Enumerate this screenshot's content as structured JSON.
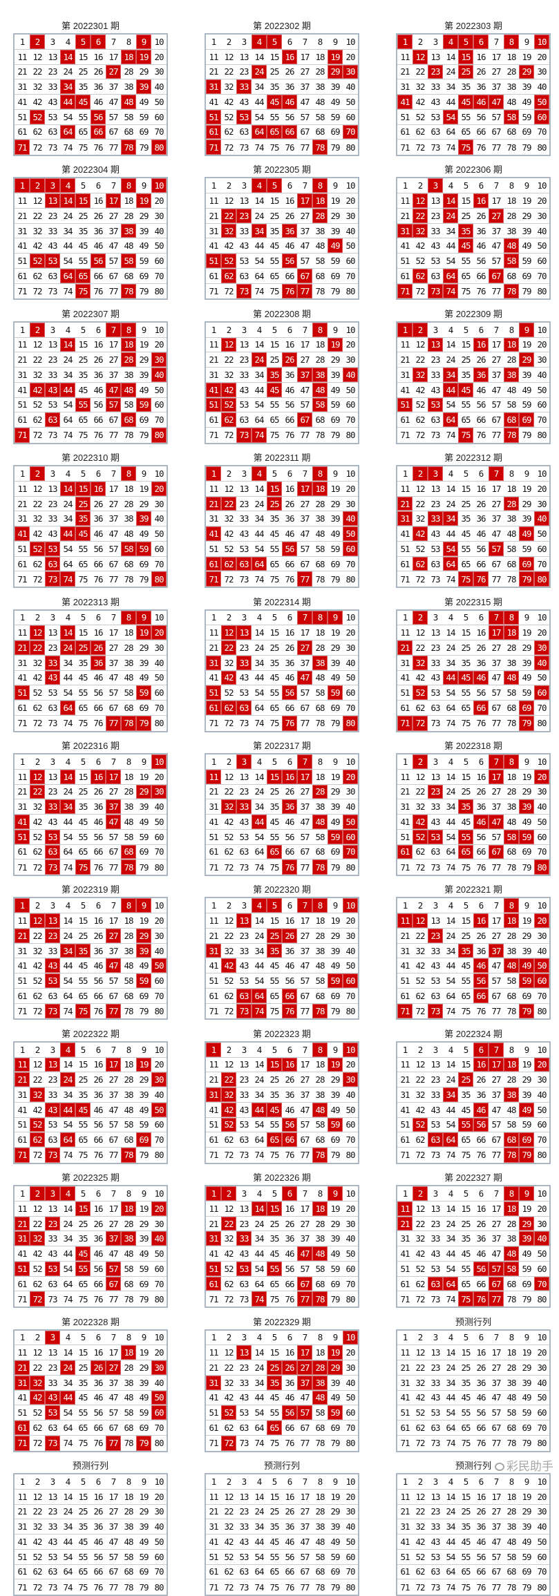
{
  "colors": {
    "highlight": "#cc0000",
    "grid_border": "#aab6c2"
  },
  "grid_numbers": [
    1,
    2,
    3,
    4,
    5,
    6,
    7,
    8,
    9,
    10,
    11,
    12,
    13,
    14,
    15,
    16,
    17,
    18,
    19,
    20,
    21,
    22,
    23,
    24,
    25,
    26,
    27,
    28,
    29,
    30,
    31,
    32,
    33,
    34,
    35,
    36,
    37,
    38,
    39,
    40,
    41,
    42,
    43,
    44,
    45,
    46,
    47,
    48,
    49,
    50,
    51,
    52,
    53,
    54,
    55,
    56,
    57,
    58,
    59,
    60,
    61,
    62,
    63,
    64,
    65,
    66,
    67,
    68,
    69,
    70,
    71,
    72,
    73,
    74,
    75,
    76,
    77,
    78,
    79,
    80
  ],
  "boards": [
    {
      "title": "第 2022301 期",
      "hits": [
        2,
        5,
        6,
        9,
        14,
        18,
        19,
        27,
        34,
        39,
        44,
        45,
        48,
        52,
        56,
        64,
        66,
        71,
        78,
        80
      ]
    },
    {
      "title": "第 2022302 期",
      "hits": [
        4,
        5,
        16,
        19,
        24,
        29,
        30,
        31,
        33,
        45,
        46,
        51,
        53,
        61,
        64,
        65,
        66,
        70,
        71,
        78
      ]
    },
    {
      "title": "第 2022303 期",
      "hits": [
        1,
        4,
        5,
        6,
        8,
        10,
        12,
        15,
        23,
        25,
        29,
        41,
        45,
        46,
        47,
        50,
        54,
        58,
        60,
        75
      ]
    },
    {
      "title": "第 2022304 期",
      "hits": [
        1,
        2,
        3,
        4,
        8,
        10,
        13,
        14,
        15,
        17,
        19,
        38,
        52,
        53,
        56,
        58,
        64,
        65,
        75,
        78
      ]
    },
    {
      "title": "第 2022305 期",
      "hits": [
        4,
        5,
        8,
        17,
        18,
        22,
        23,
        28,
        32,
        34,
        36,
        49,
        51,
        52,
        56,
        62,
        67,
        73,
        76,
        77
      ]
    },
    {
      "title": "第 2022306 期",
      "hits": [
        3,
        12,
        14,
        16,
        22,
        24,
        27,
        31,
        32,
        35,
        45,
        48,
        58,
        62,
        64,
        67,
        71,
        73,
        74,
        78
      ]
    },
    {
      "title": "第 2022307 期",
      "hits": [
        2,
        7,
        8,
        14,
        18,
        28,
        30,
        40,
        42,
        43,
        44,
        47,
        48,
        55,
        57,
        59,
        63,
        68,
        71,
        80
      ]
    },
    {
      "title": "第 2022308 期",
      "hits": [
        8,
        12,
        19,
        24,
        26,
        35,
        37,
        38,
        40,
        41,
        42,
        45,
        48,
        51,
        52,
        58,
        62,
        67,
        73,
        74
      ]
    },
    {
      "title": "第 2022309 期",
      "hits": [
        1,
        2,
        9,
        13,
        16,
        18,
        29,
        32,
        34,
        36,
        38,
        44,
        45,
        51,
        53,
        64,
        68,
        69,
        75,
        78
      ]
    },
    {
      "title": "第 2022310 期",
      "hits": [
        2,
        8,
        14,
        15,
        16,
        20,
        25,
        35,
        39,
        41,
        44,
        45,
        52,
        53,
        58,
        59,
        63,
        73,
        74,
        80
      ]
    },
    {
      "title": "第 2022311 期",
      "hits": [
        1,
        4,
        8,
        15,
        17,
        18,
        21,
        22,
        25,
        40,
        41,
        50,
        56,
        60,
        61,
        62,
        63,
        64,
        71,
        77
      ]
    },
    {
      "title": "第 2022312 期",
      "hits": [
        2,
        3,
        7,
        21,
        28,
        31,
        33,
        34,
        40,
        42,
        49,
        54,
        57,
        62,
        64,
        69,
        75,
        76,
        79,
        80
      ]
    },
    {
      "title": "第 2022313 期",
      "hits": [
        8,
        9,
        12,
        14,
        19,
        20,
        21,
        22,
        24,
        25,
        26,
        33,
        36,
        43,
        51,
        59,
        64,
        77,
        78,
        79
      ]
    },
    {
      "title": "第 2022314 期",
      "hits": [
        7,
        8,
        9,
        12,
        13,
        22,
        27,
        31,
        33,
        38,
        42,
        47,
        51,
        56,
        59,
        61,
        62,
        63,
        76,
        80
      ]
    },
    {
      "title": "第 2022315 期",
      "hits": [
        2,
        7,
        8,
        17,
        18,
        21,
        30,
        32,
        40,
        44,
        45,
        46,
        48,
        52,
        60,
        66,
        69,
        71,
        72,
        79
      ]
    },
    {
      "title": "第 2022316 期",
      "hits": [
        10,
        12,
        14,
        16,
        17,
        22,
        29,
        30,
        33,
        34,
        37,
        41,
        47,
        51,
        53,
        63,
        68,
        73,
        75,
        78
      ]
    },
    {
      "title": "第 2022317 期",
      "hits": [
        3,
        7,
        11,
        15,
        16,
        17,
        20,
        28,
        32,
        33,
        36,
        44,
        48,
        50,
        59,
        60,
        65,
        70,
        76,
        78
      ]
    },
    {
      "title": "第 2022318 期",
      "hits": [
        2,
        7,
        8,
        17,
        20,
        23,
        35,
        39,
        42,
        46,
        47,
        52,
        53,
        55,
        58,
        59,
        61,
        65,
        67,
        80
      ]
    },
    {
      "title": "第 2022319 期",
      "hits": [
        1,
        8,
        9,
        12,
        13,
        21,
        23,
        27,
        29,
        34,
        35,
        39,
        43,
        47,
        50,
        53,
        59,
        73,
        75,
        77
      ]
    },
    {
      "title": "第 2022320 期",
      "hits": [
        4,
        5,
        7,
        8,
        10,
        13,
        25,
        26,
        31,
        35,
        42,
        59,
        60,
        63,
        64,
        66,
        73,
        74,
        76,
        78
      ]
    },
    {
      "title": "第 2022321 期",
      "hits": [
        8,
        11,
        12,
        16,
        18,
        20,
        23,
        35,
        37,
        46,
        48,
        49,
        50,
        56,
        59,
        60,
        66,
        71,
        73,
        79
      ]
    },
    {
      "title": "第 2022322 期",
      "hits": [
        4,
        11,
        13,
        17,
        19,
        21,
        24,
        30,
        32,
        43,
        44,
        45,
        50,
        52,
        62,
        64,
        69,
        71,
        73,
        78
      ]
    },
    {
      "title": "第 2022323 期",
      "hits": [
        1,
        8,
        10,
        15,
        16,
        19,
        22,
        30,
        31,
        32,
        42,
        44,
        45,
        48,
        52,
        56,
        59,
        65,
        66,
        78
      ]
    },
    {
      "title": "第 2022324 期",
      "hits": [
        6,
        7,
        16,
        17,
        18,
        20,
        25,
        34,
        38,
        46,
        49,
        52,
        55,
        56,
        63,
        64,
        68,
        69,
        78,
        79
      ]
    },
    {
      "title": "第 2022325 期",
      "hits": [
        2,
        3,
        4,
        15,
        18,
        20,
        21,
        23,
        31,
        32,
        37,
        38,
        40,
        45,
        51,
        53,
        55,
        57,
        67,
        72
      ]
    },
    {
      "title": "第 2022326 期",
      "hits": [
        1,
        2,
        6,
        9,
        14,
        15,
        18,
        22,
        31,
        33,
        47,
        48,
        51,
        53,
        55,
        61,
        67,
        74,
        77,
        78
      ]
    },
    {
      "title": "第 2022327 期",
      "hits": [
        2,
        8,
        9,
        11,
        18,
        21,
        29,
        39,
        40,
        48,
        56,
        57,
        58,
        63,
        64,
        67,
        70,
        75,
        76,
        77
      ]
    },
    {
      "title": "第 2022328 期",
      "hits": [
        3,
        18,
        21,
        24,
        26,
        27,
        30,
        31,
        32,
        42,
        43,
        44,
        50,
        53,
        60,
        61,
        71,
        73,
        77,
        79
      ]
    },
    {
      "title": "第 2022329 期",
      "hits": [
        10,
        13,
        17,
        19,
        25,
        26,
        27,
        28,
        29,
        31,
        35,
        37,
        38,
        48,
        52,
        56,
        57,
        59,
        65,
        72
      ]
    },
    {
      "title": "预测行列",
      "hits": []
    },
    {
      "title": "预测行列",
      "hits": []
    },
    {
      "title": "预测行列",
      "hits": []
    },
    {
      "title": "预测行列",
      "hits": []
    }
  ],
  "watermark": {
    "text": "彩民助手",
    "icon": "wechat-icon"
  }
}
